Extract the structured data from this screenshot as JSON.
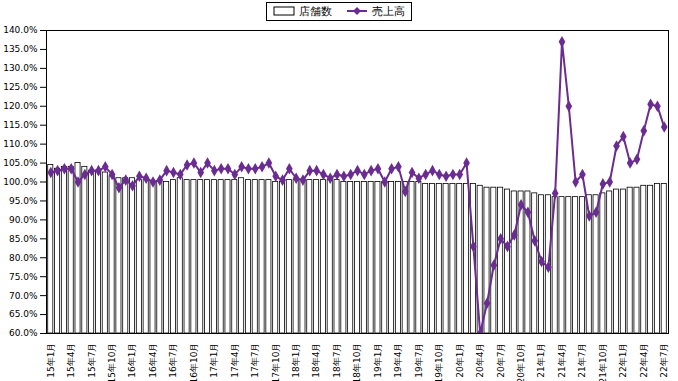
{
  "chart_data": {
    "type": "bar_line",
    "categories": [
      "15年1月",
      null,
      null,
      "15年4月",
      null,
      null,
      "15年7月",
      null,
      null,
      "15年10月",
      null,
      null,
      "16年1月",
      null,
      null,
      "16年4月",
      null,
      null,
      "16年7月",
      null,
      null,
      "16年10月",
      null,
      null,
      "17年1月",
      null,
      null,
      "17年4月",
      null,
      null,
      "17年7月",
      null,
      null,
      "17年10月",
      null,
      null,
      "18年1月",
      null,
      null,
      "18年4月",
      null,
      null,
      "18年7月",
      null,
      null,
      "18年10月",
      null,
      null,
      "19年1月",
      null,
      null,
      "19年4月",
      null,
      null,
      "19年7月",
      null,
      null,
      "19年10月",
      null,
      null,
      "20年1月",
      null,
      null,
      "20年4月",
      null,
      null,
      "20年7月",
      null,
      null,
      "20年10月",
      null,
      null,
      "21年1月",
      null,
      null,
      "21年4月",
      null,
      null,
      "21年7月",
      null,
      null,
      "21年10月",
      null,
      null,
      "22年1月",
      null,
      null,
      "22年4月",
      null,
      null,
      "22年7月"
    ],
    "series": [
      {
        "name": "店舗数",
        "type": "bar",
        "color": "#ffffff",
        "values": [
          104.5,
          103.5,
          104,
          104,
          105,
          104,
          103,
          103,
          102.5,
          101.5,
          101,
          101,
          101,
          100.5,
          100.5,
          100,
          100,
          100,
          100.5,
          101,
          100.5,
          100.5,
          100.5,
          100.5,
          100.5,
          100.5,
          100.5,
          100.5,
          101,
          100.5,
          100.5,
          100.5,
          100.5,
          100,
          100,
          100.5,
          100.5,
          100.5,
          100.5,
          100.5,
          100.5,
          100.5,
          100.5,
          100,
          100,
          100,
          100,
          100,
          100,
          100,
          100,
          100,
          100,
          100,
          100,
          99.5,
          99.5,
          99.5,
          99.5,
          99.5,
          99.5,
          99.5,
          99.5,
          99,
          98.5,
          98.5,
          98.5,
          98,
          97.5,
          97.5,
          97.5,
          97,
          96.5,
          96.5,
          96,
          96,
          96,
          96,
          96,
          96.5,
          96.5,
          97,
          97.5,
          98,
          98,
          98.5,
          98.5,
          99,
          99,
          99.5,
          99.5
        ]
      },
      {
        "name": "売上高",
        "type": "line",
        "color": "#6a2c91",
        "marker": "diamond",
        "values": [
          102.5,
          103,
          103.5,
          103.5,
          100,
          102,
          103,
          103,
          104,
          102,
          98.5,
          100.5,
          99,
          101.5,
          101,
          100,
          100.5,
          103,
          102.5,
          102,
          104.5,
          105,
          102.5,
          105,
          103,
          103.5,
          103.5,
          102,
          104,
          103.5,
          103.5,
          104,
          105,
          101.5,
          100.5,
          103.5,
          101,
          100.5,
          103,
          103,
          102,
          101,
          102,
          101.5,
          102,
          103,
          102,
          103,
          103.5,
          100,
          103.5,
          104,
          97.5,
          102.5,
          101,
          102,
          103,
          102,
          101.5,
          102,
          102,
          105,
          83,
          60,
          68,
          78,
          85,
          83,
          86,
          94,
          92,
          84.5,
          79,
          77.5,
          97,
          137,
          120,
          100,
          102,
          91,
          92,
          99.5,
          100,
          109.5,
          112,
          105,
          106,
          113.5,
          120.5,
          120,
          114.5
        ]
      }
    ],
    "ylim": [
      60,
      140
    ],
    "yticks": [
      {
        "value": 60,
        "label": "60.0%"
      },
      {
        "value": 65,
        "label": "65.0%"
      },
      {
        "value": 70,
        "label": "70.0%"
      },
      {
        "value": 75,
        "label": "75.0%"
      },
      {
        "value": 80,
        "label": "80.0%"
      },
      {
        "value": 85,
        "label": "85.0%"
      },
      {
        "value": 90,
        "label": "90.0%"
      },
      {
        "value": 95,
        "label": "95.0%"
      },
      {
        "value": 100,
        "label": "100.0%"
      },
      {
        "value": 105,
        "label": "105.0%"
      },
      {
        "value": 110,
        "label": "110.0%"
      },
      {
        "value": 115,
        "label": "115.0%"
      },
      {
        "value": 120,
        "label": "120.0%"
      },
      {
        "value": 125,
        "label": "125.0%"
      },
      {
        "value": 130,
        "label": "130.0%"
      },
      {
        "value": 135,
        "label": "135.0%"
      },
      {
        "value": 140,
        "label": "140.0%"
      }
    ],
    "grid": false,
    "legend": "top"
  }
}
